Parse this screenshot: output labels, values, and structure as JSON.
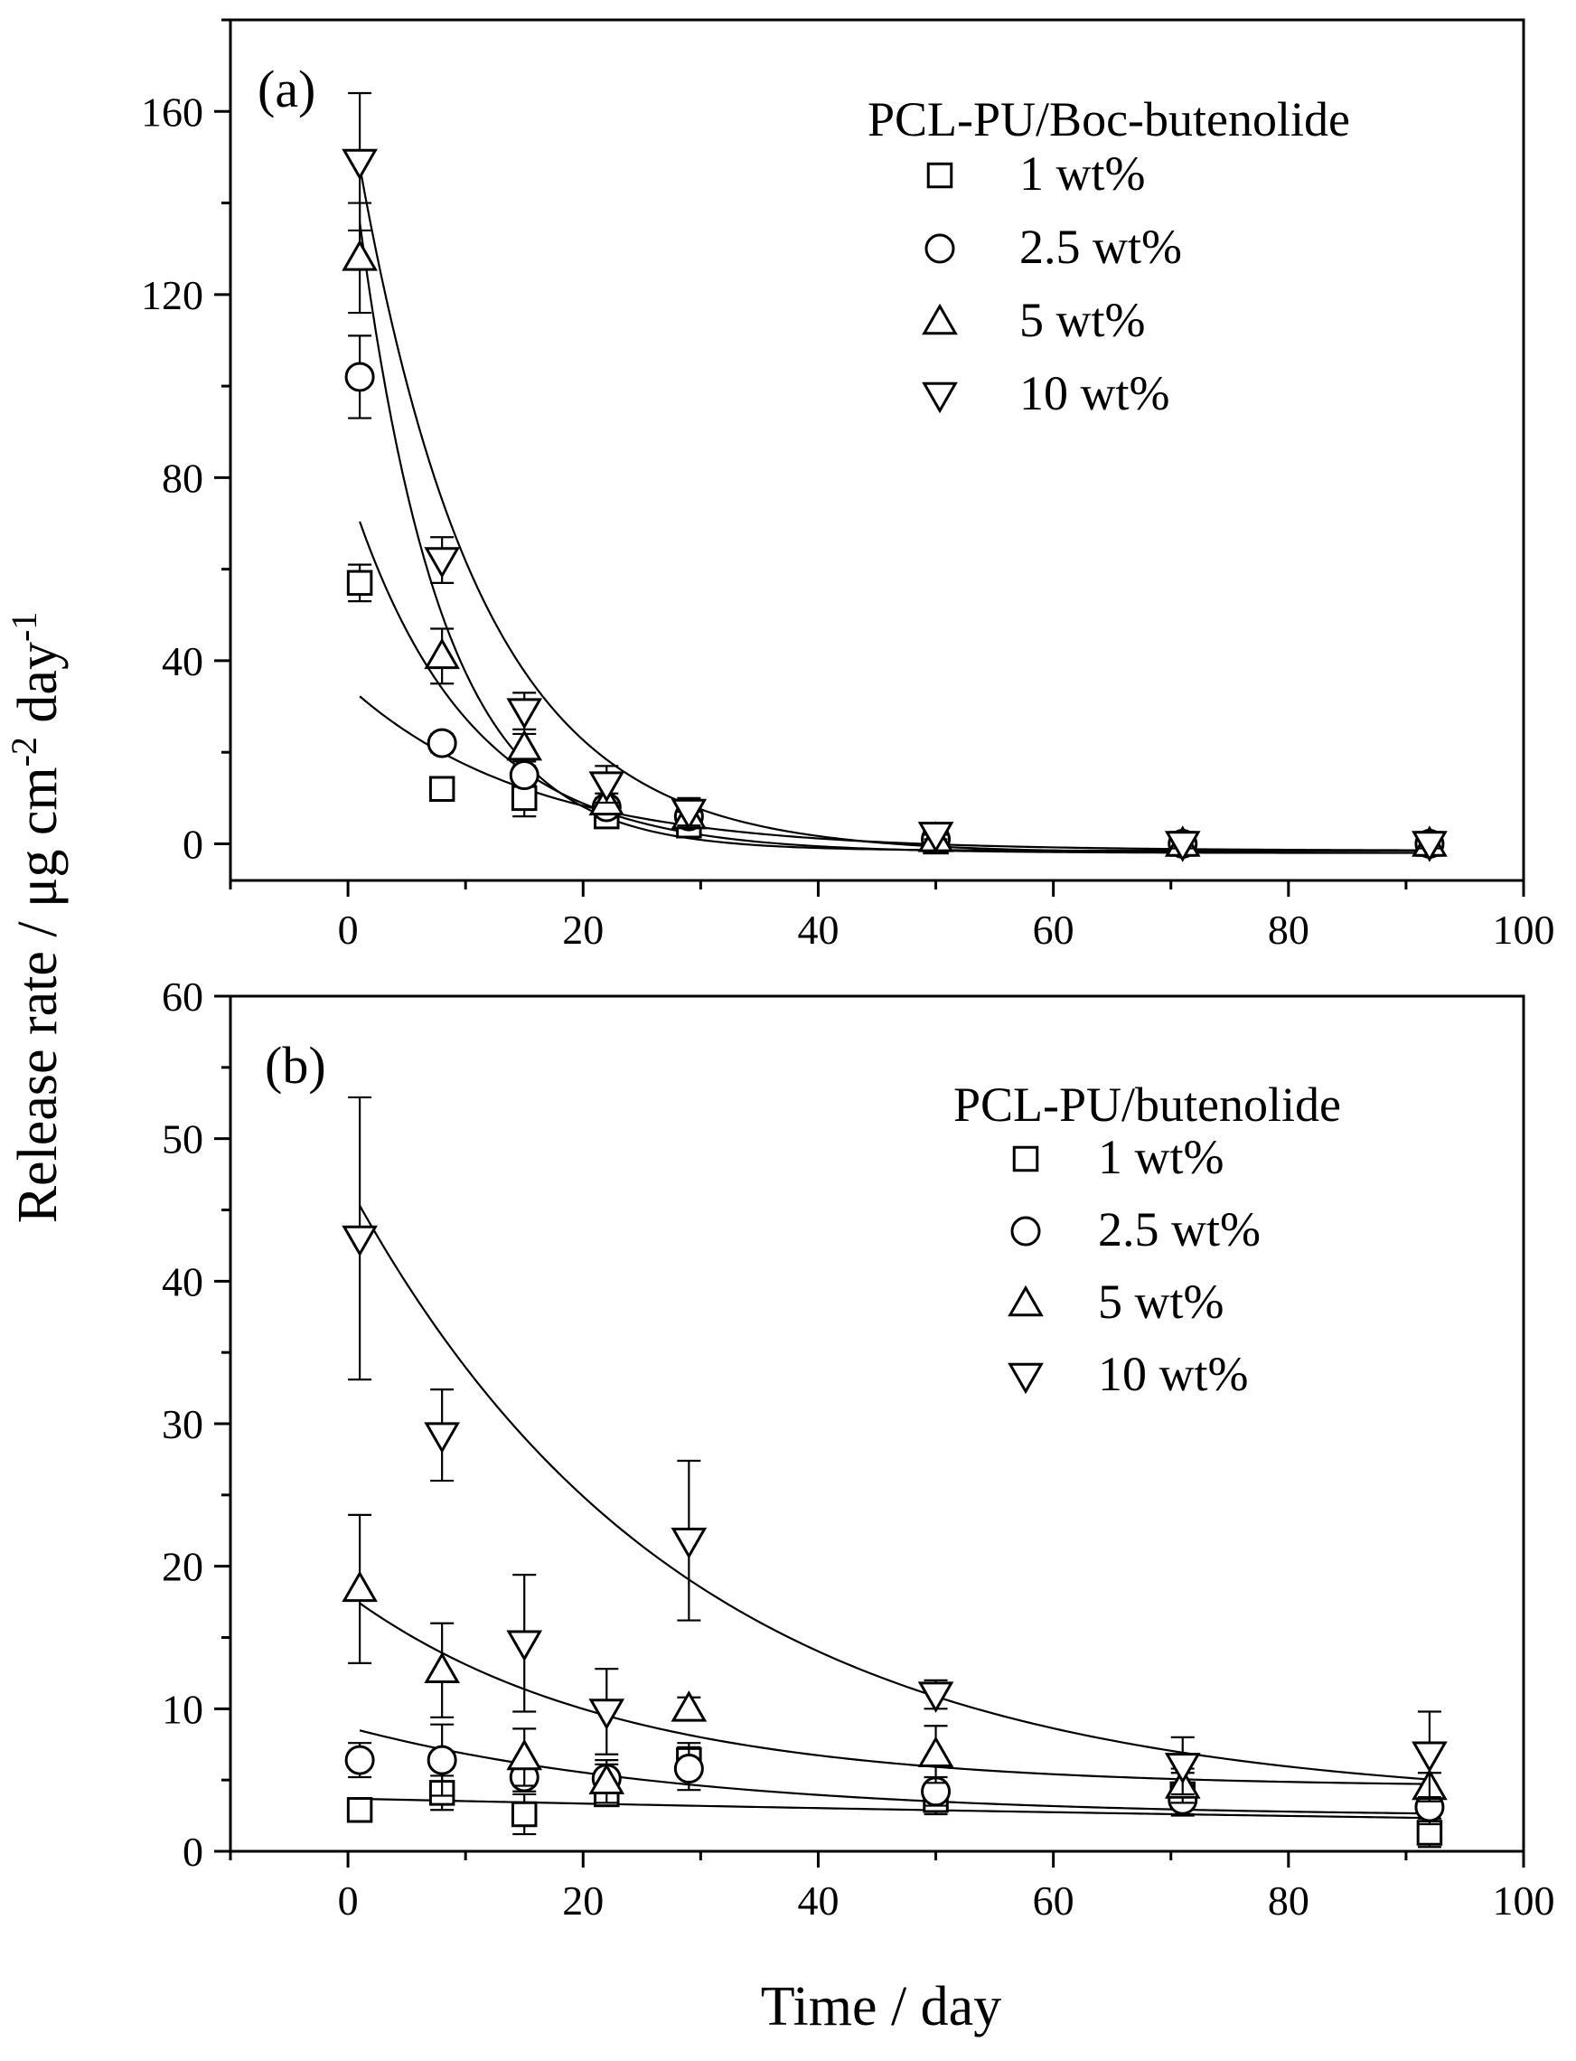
{
  "figure": {
    "ylabel_main": "Release rate / μg cm",
    "ylabel_sup1": "-2",
    "ylabel_mid": " day",
    "ylabel_sup2": "-1",
    "xlabel": "Time / day"
  },
  "chart_data": [
    {
      "type": "scatter",
      "panel_label": "(a)",
      "legend_title": "PCL-PU/Boc-butenolide",
      "legend_position": "top-right",
      "xlim": [
        -10,
        100
      ],
      "ylim": [
        -8,
        180
      ],
      "xticks": [
        0,
        20,
        40,
        60,
        80,
        100
      ],
      "yticks": [
        0,
        40,
        80,
        120,
        160
      ],
      "x": [
        1,
        8,
        15,
        22,
        29,
        50,
        71,
        92
      ],
      "series": [
        {
          "name": "1 wt%",
          "marker": "square",
          "values": [
            57,
            12,
            10,
            6,
            4,
            0.5,
            0,
            0
          ],
          "errors": [
            4,
            1.5,
            4,
            2,
            1,
            1,
            1,
            1
          ],
          "fit": {
            "a": 36,
            "k": 0.065,
            "c": -1.5
          }
        },
        {
          "name": "2.5 wt%",
          "marker": "circle",
          "values": [
            102,
            22,
            15,
            8,
            6,
            1,
            0,
            0
          ],
          "errors": [
            9,
            2,
            2,
            2,
            1,
            1,
            1,
            1
          ],
          "fit": {
            "a": 80,
            "k": 0.1,
            "c": -2
          }
        },
        {
          "name": "5 wt%",
          "marker": "triangle-up",
          "values": [
            128,
            41,
            21,
            9,
            6,
            1,
            0,
            0
          ],
          "errors": [
            12,
            6,
            3,
            2,
            1,
            1,
            1,
            1
          ],
          "fit": {
            "a": 158,
            "k": 0.14,
            "c": -1.5
          }
        },
        {
          "name": "10 wt%",
          "marker": "triangle-down",
          "values": [
            149,
            62,
            29,
            13,
            7,
            2,
            0,
            0
          ],
          "errors": [
            15,
            5,
            4,
            4,
            3,
            1,
            1,
            1
          ],
          "fit": {
            "a": 165,
            "k": 0.095,
            "c": -2
          }
        }
      ]
    },
    {
      "type": "scatter",
      "panel_label": "(b)",
      "legend_title": "PCL-PU/butenolide",
      "legend_position": "top-right",
      "xlim": [
        -10,
        100
      ],
      "ylim": [
        0,
        60
      ],
      "xticks": [
        0,
        20,
        40,
        60,
        80,
        100
      ],
      "yticks": [
        0,
        10,
        20,
        30,
        40,
        50,
        60
      ],
      "x": [
        1,
        8,
        15,
        22,
        29,
        50,
        71,
        92
      ],
      "series": [
        {
          "name": "1 wt%",
          "marker": "square",
          "values": [
            2.9,
            4.1,
            2.6,
            4.0,
            6.4,
            3.6,
            4.0,
            1.3
          ],
          "errors": [
            0.5,
            1.2,
            1.4,
            0.7,
            1.2,
            1.0,
            1.5,
            1.0
          ],
          "fit": {
            "a": 3.7,
            "k": 0.005,
            "c": 0
          }
        },
        {
          "name": "2.5 wt%",
          "marker": "circle",
          "values": [
            6.4,
            6.4,
            5.2,
            5.1,
            5.8,
            4.2,
            3.6,
            3.1
          ],
          "errors": [
            1.2,
            2.5,
            1.0,
            1.0,
            1.5,
            1.0,
            1.0,
            1.2
          ],
          "fit": {
            "a": 6.3,
            "k": 0.035,
            "c": 2.4
          }
        },
        {
          "name": "5 wt%",
          "marker": "triangle-up",
          "values": [
            18.4,
            12.7,
            6.6,
            4.9,
            10.0,
            6.8,
            4.6,
            4.5
          ],
          "errors": [
            5.2,
            3.3,
            2.0,
            1.5,
            0.8,
            2.0,
            1.2,
            1.0
          ],
          "fit": {
            "a": 13.5,
            "k": 0.045,
            "c": 4.5
          }
        },
        {
          "name": "10 wt%",
          "marker": "triangle-down",
          "values": [
            43.0,
            29.2,
            14.6,
            9.8,
            21.8,
            11.0,
            6.0,
            6.8
          ],
          "errors": [
            9.9,
            3.2,
            4.8,
            3.0,
            5.6,
            1.0,
            2.0,
            3.0
          ],
          "fit": {
            "a": 43.5,
            "k": 0.035,
            "c": 3.3
          }
        }
      ]
    }
  ]
}
